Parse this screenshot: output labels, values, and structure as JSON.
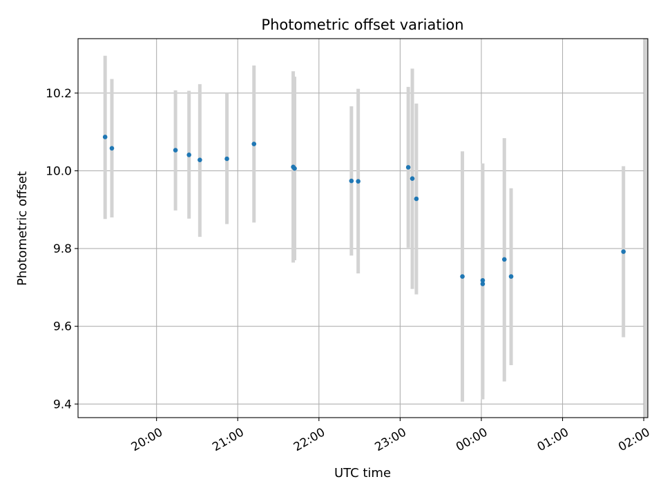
{
  "chart_data": {
    "type": "scatter",
    "title": "Photometric offset variation",
    "xlabel": "UTC time",
    "ylabel": "Photometric offset",
    "x_tick_labels": [
      "20:00",
      "21:00",
      "22:00",
      "23:00",
      "00:00",
      "01:00",
      "02:00"
    ],
    "y_tick_labels": [
      "9.4",
      "9.6",
      "9.8",
      "10.0",
      "10.2"
    ],
    "y_ticks": [
      9.4,
      9.6,
      9.8,
      10.0,
      10.2
    ],
    "ylim": [
      9.365,
      10.34
    ],
    "xlim": [
      "19:02",
      "02:03"
    ],
    "grid": true,
    "colors": {
      "points": "#1f77b4",
      "errorbars": "#d3d3d3",
      "grid": "#b0b0b0"
    },
    "points": [
      {
        "x": "19:22",
        "y": 10.087,
        "y_low": 9.876,
        "y_high": 10.296
      },
      {
        "x": "19:27",
        "y": 10.058,
        "y_low": 9.88,
        "y_high": 10.236
      },
      {
        "x": "20:14",
        "y": 10.053,
        "y_low": 9.898,
        "y_high": 10.207
      },
      {
        "x": "20:24",
        "y": 10.041,
        "y_low": 9.877,
        "y_high": 10.206
      },
      {
        "x": "20:32",
        "y": 10.028,
        "y_low": 9.83,
        "y_high": 10.223
      },
      {
        "x": "20:52",
        "y": 10.031,
        "y_low": 9.863,
        "y_high": 10.2
      },
      {
        "x": "21:12",
        "y": 10.069,
        "y_low": 9.867,
        "y_high": 10.271
      },
      {
        "x": "21:41",
        "y": 10.01,
        "y_low": 9.764,
        "y_high": 10.256
      },
      {
        "x": "21:42",
        "y": 10.006,
        "y_low": 9.77,
        "y_high": 10.242
      },
      {
        "x": "22:24",
        "y": 9.974,
        "y_low": 9.782,
        "y_high": 10.166
      },
      {
        "x": "22:29",
        "y": 9.973,
        "y_low": 9.736,
        "y_high": 10.211
      },
      {
        "x": "23:06",
        "y": 10.009,
        "y_low": 9.802,
        "y_high": 10.216
      },
      {
        "x": "23:09",
        "y": 9.98,
        "y_low": 9.696,
        "y_high": 10.263
      },
      {
        "x": "23:12",
        "y": 9.928,
        "y_low": 9.682,
        "y_high": 10.173
      },
      {
        "x": "23:46",
        "y": 9.728,
        "y_low": 9.406,
        "y_high": 10.05
      },
      {
        "x": "00:01",
        "y": 9.718,
        "y_low": 9.412,
        "y_high": 10.019
      },
      {
        "x": "00:01",
        "y": 9.709,
        "y_low": 9.42,
        "y_high": 9.998
      },
      {
        "x": "00:17",
        "y": 9.772,
        "y_low": 9.458,
        "y_high": 10.084
      },
      {
        "x": "00:22",
        "y": 9.728,
        "y_low": 9.5,
        "y_high": 9.955
      },
      {
        "x": "01:45",
        "y": 9.792,
        "y_low": 9.572,
        "y_high": 10.012
      }
    ],
    "extra_errorbars": [
      {
        "x": "02:03",
        "y_low": 9.365,
        "y_high": 10.34
      }
    ]
  }
}
